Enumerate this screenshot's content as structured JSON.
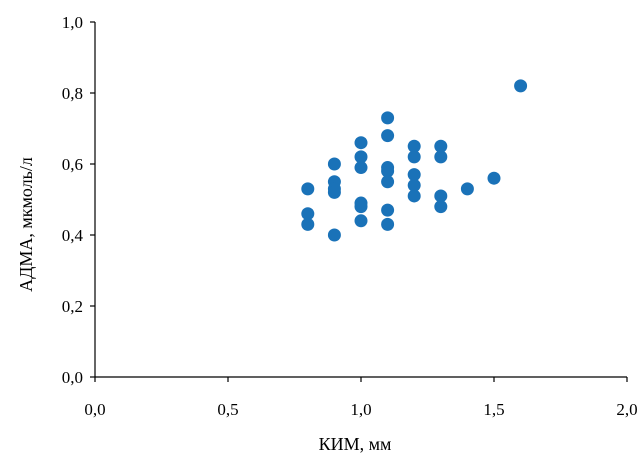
{
  "chart_data": {
    "type": "scatter",
    "title": "",
    "xlabel": "КИМ, мм",
    "ylabel": "АДМА, мкмоль/л",
    "xlim": [
      0.0,
      2.0
    ],
    "ylim": [
      0.0,
      1.0
    ],
    "x_ticks": [
      0.0,
      0.5,
      1.0,
      1.5,
      2.0
    ],
    "x_tick_labels": [
      "0,0",
      "0,5",
      "1,0",
      "1,5",
      "2,0"
    ],
    "y_ticks": [
      0.0,
      0.2,
      0.4,
      0.6,
      0.8,
      1.0
    ],
    "y_tick_labels": [
      "0,0",
      "0,2",
      "0,4",
      "0,6",
      "0,8",
      "1,0"
    ],
    "grid": false,
    "legend": "none",
    "marker_color": "#1a72b8",
    "series": [
      {
        "points": [
          {
            "x": 0.8,
            "y": 0.53
          },
          {
            "x": 0.8,
            "y": 0.46
          },
          {
            "x": 0.8,
            "y": 0.43
          },
          {
            "x": 0.9,
            "y": 0.6
          },
          {
            "x": 0.9,
            "y": 0.55
          },
          {
            "x": 0.9,
            "y": 0.53
          },
          {
            "x": 0.9,
            "y": 0.52
          },
          {
            "x": 0.9,
            "y": 0.4
          },
          {
            "x": 1.0,
            "y": 0.66
          },
          {
            "x": 1.0,
            "y": 0.62
          },
          {
            "x": 1.0,
            "y": 0.59
          },
          {
            "x": 1.0,
            "y": 0.49
          },
          {
            "x": 1.0,
            "y": 0.48
          },
          {
            "x": 1.0,
            "y": 0.44
          },
          {
            "x": 1.1,
            "y": 0.73
          },
          {
            "x": 1.1,
            "y": 0.68
          },
          {
            "x": 1.1,
            "y": 0.59
          },
          {
            "x": 1.1,
            "y": 0.58
          },
          {
            "x": 1.1,
            "y": 0.55
          },
          {
            "x": 1.1,
            "y": 0.47
          },
          {
            "x": 1.1,
            "y": 0.43
          },
          {
            "x": 1.2,
            "y": 0.65
          },
          {
            "x": 1.2,
            "y": 0.62
          },
          {
            "x": 1.2,
            "y": 0.57
          },
          {
            "x": 1.2,
            "y": 0.54
          },
          {
            "x": 1.2,
            "y": 0.51
          },
          {
            "x": 1.3,
            "y": 0.65
          },
          {
            "x": 1.3,
            "y": 0.62
          },
          {
            "x": 1.3,
            "y": 0.51
          },
          {
            "x": 1.3,
            "y": 0.48
          },
          {
            "x": 1.4,
            "y": 0.53
          },
          {
            "x": 1.5,
            "y": 0.56
          },
          {
            "x": 1.6,
            "y": 0.82
          }
        ]
      }
    ]
  }
}
